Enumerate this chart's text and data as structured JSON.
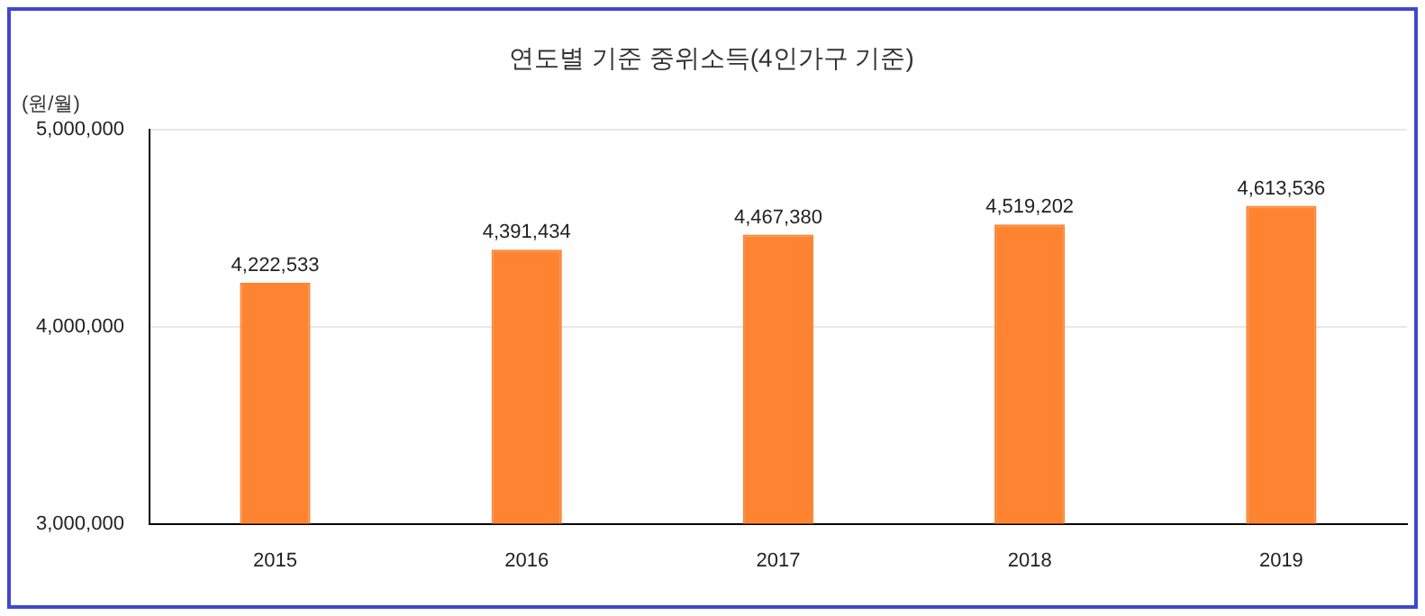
{
  "chart_data": {
    "type": "bar",
    "title": "연도별 기준 중위소득(4인가구 기준)",
    "ylabel": "(원/월)",
    "categories": [
      "2015",
      "2016",
      "2017",
      "2018",
      "2019"
    ],
    "values": [
      4222533,
      4391434,
      4467380,
      4519202,
      4613536
    ],
    "value_labels": [
      "4,222,533",
      "4,391,434",
      "4,467,380",
      "4,519,202",
      "4,613,536"
    ],
    "color": "#fe8432",
    "ylim": [
      3000000,
      5000000
    ],
    "yticks": [
      {
        "value": 3000000,
        "label": "3,000,000"
      },
      {
        "value": 4000000,
        "label": "4,000,000"
      },
      {
        "value": 5000000,
        "label": "5,000,000"
      }
    ],
    "grid": "y",
    "legend": false
  }
}
